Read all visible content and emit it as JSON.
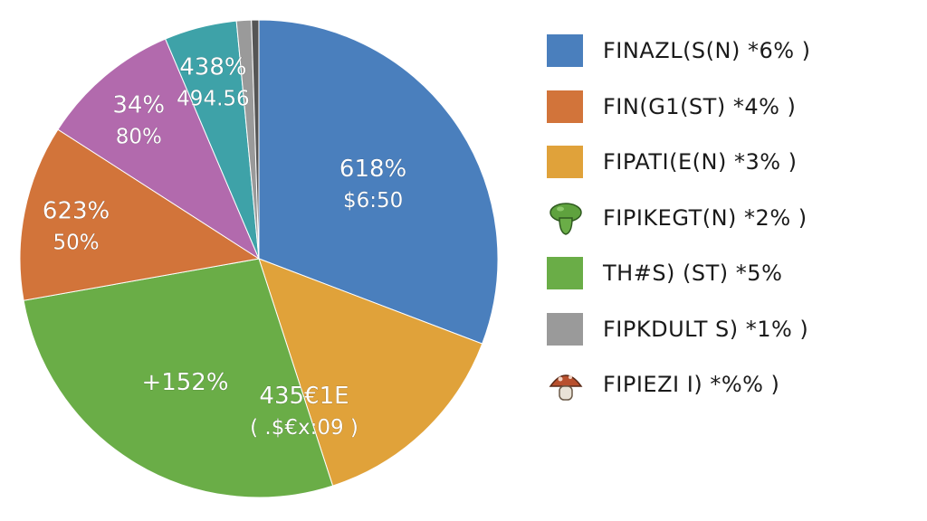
{
  "chart_data": {
    "type": "pie",
    "title": "",
    "start_angle_deg": 0,
    "slices": [
      {
        "color": "#4a7fbd",
        "value": 30.8,
        "label_line1": "618%",
        "label_line2": "$6:50"
      },
      {
        "color": "#e0a23a",
        "value": 14.2,
        "label_line1": "",
        "label_line2": ""
      },
      {
        "color": "#6aad47",
        "value": 27.2,
        "label_line1": "+152%",
        "label_line2": ""
      },
      {
        "color": "#d2743a",
        "value": 11.9,
        "label_line1": "623%",
        "label_line2": "50%"
      },
      {
        "color": "#b26aad",
        "value": 9.5,
        "label_line1": "34%",
        "label_line2": "80%"
      },
      {
        "color": "#3ea2a8",
        "value": 4.9,
        "label_line1": "438%",
        "label_line2": "494.56"
      },
      {
        "color": "#9a9a9a",
        "value": 1.0,
        "label_line1": "",
        "label_line2": ""
      },
      {
        "color": "#555555",
        "value": 0.5,
        "label_line1": "",
        "label_line2": ""
      }
    ],
    "center_annotation": {
      "line1": "435€1E",
      "line2": "( .$€x:09  )"
    },
    "legend": [
      {
        "kind": "swatch",
        "color": "#4a7fbd",
        "label": "FINAZL(S(N) *6%  )"
      },
      {
        "kind": "swatch",
        "color": "#d2743a",
        "label": "FIN(G1(ST) *4%  )"
      },
      {
        "kind": "swatch",
        "color": "#e0a23a",
        "label": "FIPATI(E(N) *3%  )"
      },
      {
        "kind": "icon",
        "icon": "green-mushroom-icon",
        "color": "#5fa23e",
        "label": "FIPIKEGT(N) *2%  )"
      },
      {
        "kind": "swatch",
        "color": "#6aad47",
        "label": "TH#S) (ST) *5%"
      },
      {
        "kind": "swatch",
        "color": "#9a9a9a",
        "label": "FIPKDULT S) *1%  )"
      },
      {
        "kind": "icon",
        "icon": "red-mushroom-icon",
        "color": "#b8502e",
        "label": "FIPIEZI I) *%%  )"
      }
    ]
  }
}
